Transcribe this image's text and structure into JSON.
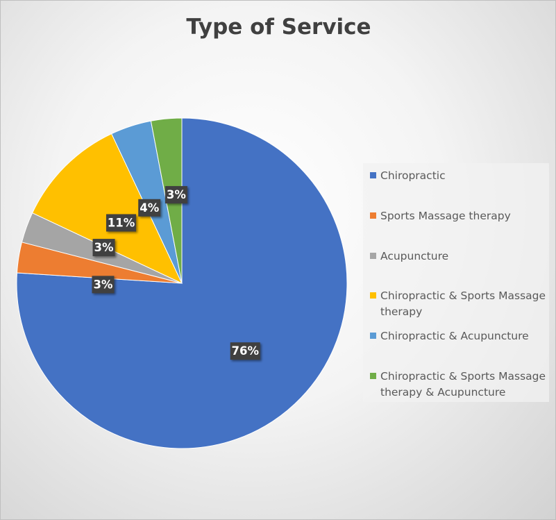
{
  "chart_data": {
    "type": "pie",
    "title": "Type of Service",
    "legend_position": "right",
    "slices": [
      {
        "label": "Chiropractic",
        "value": 76,
        "data_label": "76%",
        "color": "#4472C4"
      },
      {
        "label": "Sports Massage therapy",
        "value": 3,
        "data_label": "3%",
        "color": "#ED7D31"
      },
      {
        "label": "Acupuncture",
        "value": 3,
        "data_label": "3%",
        "color": "#A5A5A5"
      },
      {
        "label": "Chiropractic & Sports Massage therapy",
        "value": 11,
        "data_label": "11%",
        "color": "#FFC000"
      },
      {
        "label": "Chiropractic & Acupuncture",
        "value": 4,
        "data_label": "4%",
        "color": "#5B9BD5"
      },
      {
        "label": "Chiropractic & Sports Massage therapy & Acupuncture",
        "value": 3,
        "data_label": "3%",
        "color": "#70AD47"
      }
    ]
  }
}
